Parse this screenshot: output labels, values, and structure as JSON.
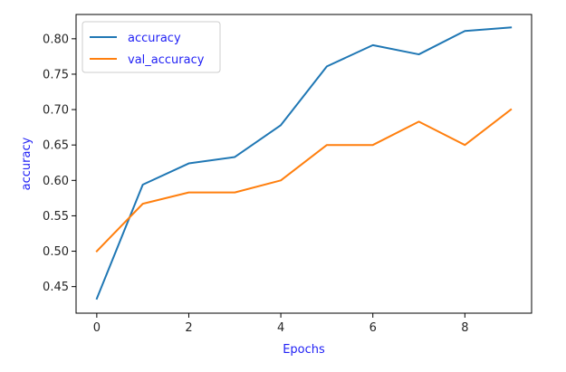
{
  "chart_data": {
    "type": "line",
    "title": "",
    "xlabel": "Epochs",
    "ylabel": "accuracy",
    "x": [
      0,
      1,
      2,
      3,
      4,
      5,
      6,
      7,
      8,
      9
    ],
    "xticks": [
      0,
      2,
      4,
      6,
      8
    ],
    "yticks": [
      0.45,
      0.5,
      0.55,
      0.6,
      0.65,
      0.7,
      0.75,
      0.8
    ],
    "xlim": [
      -0.45,
      9.45
    ],
    "ylim": [
      0.4125,
      0.8343
    ],
    "grid": false,
    "legend_position": "top-left",
    "colors": {
      "label": "#1f1ff5",
      "axis": "#000000"
    },
    "series": [
      {
        "name": "accuracy",
        "color": "#1f77b4",
        "values": [
          0.433,
          0.594,
          0.624,
          0.633,
          0.678,
          0.761,
          0.791,
          0.778,
          0.811,
          0.816
        ]
      },
      {
        "name": "val_accuracy",
        "color": "#ff7f0e",
        "values": [
          0.5,
          0.567,
          0.583,
          0.583,
          0.6,
          0.65,
          0.65,
          0.683,
          0.65,
          0.7
        ]
      }
    ]
  }
}
